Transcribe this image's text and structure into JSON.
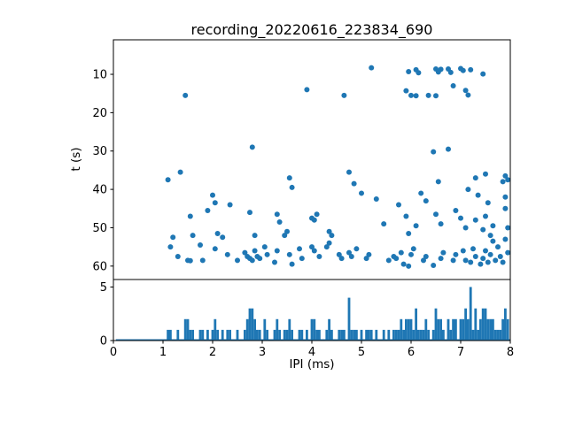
{
  "figure": {
    "background": "#ffffff",
    "frame_color": "#000000"
  },
  "chart_data": [
    {
      "type": "scatter",
      "title": "recording_20220616_223834_690",
      "ylabel": "t (s)",
      "xlim": [
        0,
        8
      ],
      "ylim": [
        1,
        63.5
      ],
      "y_inverted": true,
      "x_ticks": [
        0,
        1,
        2,
        3,
        4,
        5,
        6,
        7,
        8
      ],
      "y_ticks": [
        10,
        20,
        30,
        40,
        50,
        60
      ],
      "marker_color": "#1f77b4",
      "points": [
        [
          5.2,
          8.3
        ],
        [
          6.1,
          8.8
        ],
        [
          6.5,
          8.6
        ],
        [
          6.6,
          8.7
        ],
        [
          6.75,
          8.6
        ],
        [
          7.0,
          8.5
        ],
        [
          7.2,
          8.8
        ],
        [
          5.95,
          9.3
        ],
        [
          6.15,
          9.6
        ],
        [
          6.55,
          9.4
        ],
        [
          6.8,
          9.5
        ],
        [
          7.05,
          9.0
        ],
        [
          7.45,
          9.9
        ],
        [
          6.85,
          13.0
        ],
        [
          3.9,
          14.0
        ],
        [
          5.9,
          14.3
        ],
        [
          7.1,
          14.2
        ],
        [
          1.45,
          15.5
        ],
        [
          4.65,
          15.5
        ],
        [
          6.0,
          15.5
        ],
        [
          6.1,
          15.6
        ],
        [
          6.35,
          15.5
        ],
        [
          6.5,
          15.6
        ],
        [
          7.15,
          15.4
        ],
        [
          2.8,
          29.0
        ],
        [
          6.45,
          30.2
        ],
        [
          6.75,
          29.5
        ],
        [
          1.35,
          35.5
        ],
        [
          4.75,
          35.5
        ],
        [
          7.5,
          36.0
        ],
        [
          7.9,
          36.5
        ],
        [
          1.1,
          37.5
        ],
        [
          3.55,
          37.0
        ],
        [
          7.3,
          37.0
        ],
        [
          7.95,
          37.5
        ],
        [
          4.85,
          38.5
        ],
        [
          6.55,
          38.0
        ],
        [
          7.85,
          38.0
        ],
        [
          3.6,
          39.5
        ],
        [
          7.15,
          40.0
        ],
        [
          5.0,
          41.0
        ],
        [
          6.2,
          41.0
        ],
        [
          2.0,
          41.5
        ],
        [
          7.35,
          41.5
        ],
        [
          7.9,
          42.0
        ],
        [
          5.3,
          42.5
        ],
        [
          6.3,
          43.0
        ],
        [
          2.05,
          43.5
        ],
        [
          7.55,
          43.5
        ],
        [
          2.35,
          44.0
        ],
        [
          5.75,
          44.0
        ],
        [
          1.9,
          45.5
        ],
        [
          6.9,
          45.5
        ],
        [
          7.9,
          45.0
        ],
        [
          2.75,
          46.0
        ],
        [
          3.3,
          46.5
        ],
        [
          4.1,
          46.5
        ],
        [
          6.5,
          46.5
        ],
        [
          1.55,
          47.0
        ],
        [
          5.9,
          47.0
        ],
        [
          7.5,
          47.0
        ],
        [
          4.0,
          47.5
        ],
        [
          7.0,
          47.5
        ],
        [
          3.35,
          48.5
        ],
        [
          4.05,
          48.0
        ],
        [
          7.3,
          48.0
        ],
        [
          5.45,
          49.0
        ],
        [
          6.6,
          49.0
        ],
        [
          6.1,
          49.5
        ],
        [
          7.65,
          49.5
        ],
        [
          7.1,
          50.0
        ],
        [
          7.95,
          50.0
        ],
        [
          7.45,
          50.5
        ],
        [
          3.5,
          51.0
        ],
        [
          4.35,
          51.0
        ],
        [
          2.1,
          51.5
        ],
        [
          5.95,
          51.5
        ],
        [
          1.6,
          52.0
        ],
        [
          2.85,
          52.0
        ],
        [
          3.45,
          52.0
        ],
        [
          4.4,
          52.0
        ],
        [
          7.6,
          52.0
        ],
        [
          1.2,
          52.5
        ],
        [
          2.2,
          52.5
        ],
        [
          7.9,
          53.0
        ],
        [
          7.65,
          53.5
        ],
        [
          4.35,
          54.0
        ],
        [
          1.75,
          54.5
        ],
        [
          1.15,
          55.0
        ],
        [
          3.05,
          55.0
        ],
        [
          4.0,
          55.0
        ],
        [
          4.3,
          55.0
        ],
        [
          7.75,
          55.0
        ],
        [
          2.05,
          55.5
        ],
        [
          3.75,
          55.5
        ],
        [
          4.9,
          55.5
        ],
        [
          6.05,
          55.5
        ],
        [
          7.25,
          55.5
        ],
        [
          2.85,
          56.0
        ],
        [
          3.3,
          56.0
        ],
        [
          4.05,
          56.0
        ],
        [
          7.05,
          56.0
        ],
        [
          7.5,
          56.0
        ],
        [
          2.65,
          56.5
        ],
        [
          4.75,
          56.5
        ],
        [
          5.8,
          56.5
        ],
        [
          6.65,
          56.5
        ],
        [
          7.95,
          56.5
        ],
        [
          2.3,
          57.0
        ],
        [
          3.1,
          57.0
        ],
        [
          3.55,
          57.0
        ],
        [
          4.55,
          57.0
        ],
        [
          5.15,
          57.0
        ],
        [
          6.0,
          57.0
        ],
        [
          6.9,
          57.0
        ],
        [
          7.6,
          57.0
        ],
        [
          1.3,
          57.5
        ],
        [
          2.7,
          57.5
        ],
        [
          2.9,
          57.5
        ],
        [
          4.15,
          57.5
        ],
        [
          4.8,
          57.5
        ],
        [
          5.65,
          57.5
        ],
        [
          6.3,
          57.5
        ],
        [
          7.3,
          57.5
        ],
        [
          7.8,
          57.5
        ],
        [
          2.75,
          58.0
        ],
        [
          2.95,
          58.0
        ],
        [
          3.8,
          58.0
        ],
        [
          4.6,
          58.0
        ],
        [
          5.1,
          58.0
        ],
        [
          5.7,
          58.0
        ],
        [
          6.6,
          58.0
        ],
        [
          7.45,
          58.0
        ],
        [
          1.5,
          58.5
        ],
        [
          1.55,
          58.6
        ],
        [
          1.8,
          58.5
        ],
        [
          2.5,
          58.5
        ],
        [
          2.8,
          58.5
        ],
        [
          5.55,
          58.5
        ],
        [
          6.25,
          58.5
        ],
        [
          6.85,
          58.5
        ],
        [
          7.1,
          58.5
        ],
        [
          7.7,
          58.5
        ],
        [
          3.25,
          59.0
        ],
        [
          7.2,
          59.0
        ],
        [
          7.55,
          59.0
        ],
        [
          7.85,
          59.0
        ],
        [
          3.6,
          59.5
        ],
        [
          5.85,
          59.5
        ],
        [
          7.4,
          59.5
        ],
        [
          5.95,
          60.0
        ],
        [
          6.45,
          59.8
        ]
      ]
    },
    {
      "type": "bar",
      "xlabel": "IPI (ms)",
      "xlim": [
        0,
        8
      ],
      "ylim": [
        0,
        5.7
      ],
      "y_ticks": [
        0,
        5
      ],
      "bin_width": 0.05,
      "bar_color": "#1f77b4",
      "baseline": true,
      "bars": [
        [
          1.1,
          1
        ],
        [
          1.15,
          1
        ],
        [
          1.3,
          1
        ],
        [
          1.45,
          2
        ],
        [
          1.5,
          2
        ],
        [
          1.55,
          1
        ],
        [
          1.6,
          1
        ],
        [
          1.75,
          1
        ],
        [
          1.8,
          1
        ],
        [
          1.9,
          1
        ],
        [
          2.0,
          1
        ],
        [
          2.05,
          2
        ],
        [
          2.1,
          1
        ],
        [
          2.2,
          1
        ],
        [
          2.3,
          1
        ],
        [
          2.35,
          1
        ],
        [
          2.5,
          1
        ],
        [
          2.65,
          1
        ],
        [
          2.7,
          2
        ],
        [
          2.75,
          3
        ],
        [
          2.8,
          3
        ],
        [
          2.85,
          2
        ],
        [
          2.9,
          1
        ],
        [
          2.95,
          1
        ],
        [
          3.05,
          2
        ],
        [
          3.1,
          1
        ],
        [
          3.25,
          1
        ],
        [
          3.3,
          2
        ],
        [
          3.35,
          1
        ],
        [
          3.45,
          1
        ],
        [
          3.5,
          1
        ],
        [
          3.55,
          2
        ],
        [
          3.6,
          1
        ],
        [
          3.75,
          1
        ],
        [
          3.8,
          1
        ],
        [
          3.9,
          1
        ],
        [
          4.0,
          2
        ],
        [
          4.05,
          2
        ],
        [
          4.1,
          1
        ],
        [
          4.15,
          1
        ],
        [
          4.3,
          1
        ],
        [
          4.35,
          2
        ],
        [
          4.4,
          1
        ],
        [
          4.55,
          1
        ],
        [
          4.6,
          1
        ],
        [
          4.65,
          1
        ],
        [
          4.75,
          4
        ],
        [
          4.8,
          1
        ],
        [
          4.85,
          1
        ],
        [
          4.9,
          1
        ],
        [
          5.0,
          1
        ],
        [
          5.1,
          1
        ],
        [
          5.15,
          1
        ],
        [
          5.2,
          1
        ],
        [
          5.3,
          1
        ],
        [
          5.45,
          1
        ],
        [
          5.55,
          1
        ],
        [
          5.65,
          1
        ],
        [
          5.7,
          1
        ],
        [
          5.75,
          1
        ],
        [
          5.8,
          2
        ],
        [
          5.85,
          1
        ],
        [
          5.9,
          2
        ],
        [
          5.95,
          2
        ],
        [
          6.0,
          2
        ],
        [
          6.05,
          1
        ],
        [
          6.1,
          3
        ],
        [
          6.15,
          1
        ],
        [
          6.2,
          1
        ],
        [
          6.25,
          1
        ],
        [
          6.3,
          2
        ],
        [
          6.35,
          1
        ],
        [
          6.45,
          1
        ],
        [
          6.5,
          3
        ],
        [
          6.55,
          2
        ],
        [
          6.6,
          2
        ],
        [
          6.65,
          1
        ],
        [
          6.75,
          2
        ],
        [
          6.8,
          1
        ],
        [
          6.85,
          2
        ],
        [
          6.9,
          2
        ],
        [
          7.0,
          2
        ],
        [
          7.05,
          2
        ],
        [
          7.1,
          3
        ],
        [
          7.15,
          2
        ],
        [
          7.2,
          5
        ],
        [
          7.25,
          1
        ],
        [
          7.3,
          3
        ],
        [
          7.35,
          1
        ],
        [
          7.4,
          2
        ],
        [
          7.45,
          3
        ],
        [
          7.5,
          3
        ],
        [
          7.55,
          2
        ],
        [
          7.6,
          2
        ],
        [
          7.65,
          2
        ],
        [
          7.7,
          1
        ],
        [
          7.75,
          1
        ],
        [
          7.8,
          1
        ],
        [
          7.85,
          2
        ],
        [
          7.9,
          3
        ],
        [
          7.95,
          2
        ]
      ]
    }
  ]
}
